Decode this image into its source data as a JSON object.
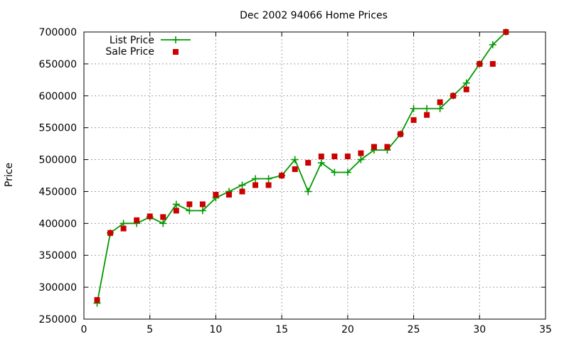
{
  "chart_data": {
    "type": "line",
    "title": "Dec 2002 94066 Home Prices",
    "xlabel": "",
    "ylabel": "Price",
    "xlim": [
      0,
      35
    ],
    "ylim": [
      250000,
      700000
    ],
    "x_ticks": [
      0,
      5,
      10,
      15,
      20,
      25,
      30,
      35
    ],
    "y_ticks": [
      250000,
      300000,
      350000,
      400000,
      450000,
      500000,
      550000,
      600000,
      650000,
      700000
    ],
    "grid": true,
    "legend_position": "top-left",
    "series": [
      {
        "name": "List Price",
        "style": "line-points",
        "marker": "plus",
        "color": "#009900",
        "x": [
          1,
          2,
          3,
          4,
          5,
          6,
          7,
          8,
          9,
          10,
          11,
          12,
          13,
          14,
          15,
          16,
          17,
          18,
          19,
          20,
          21,
          22,
          23,
          24,
          25,
          26,
          27,
          28,
          29,
          30,
          31,
          32
        ],
        "y": [
          275000,
          385000,
          400000,
          400000,
          410000,
          400000,
          430000,
          420000,
          420000,
          440000,
          450000,
          460000,
          470000,
          470000,
          475000,
          500000,
          450000,
          495000,
          480000,
          480000,
          500000,
          515000,
          515000,
          540000,
          580000,
          580000,
          580000,
          600000,
          620000,
          650000,
          680000,
          700000
        ]
      },
      {
        "name": "Sale Price",
        "style": "points",
        "marker": "square",
        "color": "#cc0000",
        "x": [
          1,
          2,
          3,
          4,
          5,
          6,
          7,
          8,
          9,
          10,
          11,
          12,
          13,
          14,
          15,
          16,
          17,
          18,
          19,
          20,
          21,
          22,
          23,
          24,
          25,
          26,
          27,
          28,
          29,
          30,
          31,
          32
        ],
        "y": [
          280000,
          385000,
          392000,
          405000,
          411000,
          410000,
          420000,
          430000,
          430000,
          445000,
          445000,
          450000,
          460000,
          460000,
          475000,
          485000,
          495000,
          505000,
          505000,
          505000,
          510000,
          520000,
          520000,
          540000,
          562000,
          570000,
          590000,
          600000,
          610000,
          650000,
          650000,
          700000
        ]
      }
    ]
  }
}
